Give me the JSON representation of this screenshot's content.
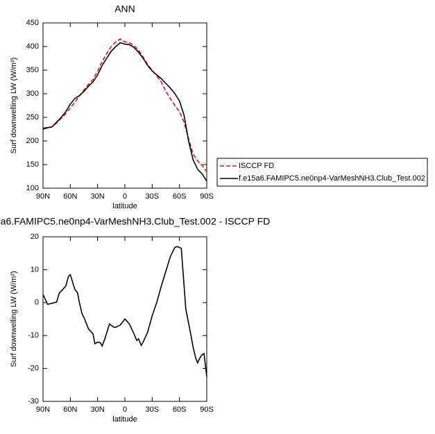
{
  "chart_data": [
    {
      "type": "line",
      "title": "ANN",
      "xlabel": "latitude",
      "ylabel": "Surf downwelling LW (W/m²)",
      "xlim": [
        90,
        -90
      ],
      "xticks": [
        {
          "value": 90,
          "label": "90N"
        },
        {
          "value": 60,
          "label": "60N"
        },
        {
          "value": 30,
          "label": "30N"
        },
        0,
        {
          "value": -30,
          "label": "30S"
        },
        {
          "value": -60,
          "label": "60S"
        },
        {
          "value": -90,
          "label": "90S"
        }
      ],
      "ylim": [
        100,
        450
      ],
      "yticks": [
        100,
        150,
        200,
        250,
        300,
        350,
        400,
        450
      ],
      "legend": "outside-right",
      "x": [
        90,
        85,
        80,
        75,
        70,
        65,
        60,
        55,
        50,
        45,
        40,
        35,
        30,
        25,
        20,
        15,
        10,
        5,
        0,
        -5,
        -10,
        -15,
        -20,
        -25,
        -30,
        -35,
        -40,
        -45,
        -50,
        -55,
        -60,
        -65,
        -70,
        -75,
        -80,
        -85,
        -90
      ],
      "series": [
        {
          "name": "ISCCP FD",
          "color": "#e01010",
          "dash": true,
          "values": [
            228,
            228,
            230,
            238,
            248,
            258,
            270,
            282,
            295,
            308,
            320,
            330,
            348,
            368,
            385,
            400,
            410,
            416,
            410,
            408,
            402,
            392,
            378,
            362,
            350,
            338,
            325,
            305,
            290,
            275,
            262,
            240,
            205,
            172,
            158,
            148,
            135
          ]
        },
        {
          "name": "f.e15a6.FAMIPC5.ne0np4-VarMeshNH3.Club_Test.002",
          "color": "#000000",
          "dash": false,
          "values": [
            225,
            228,
            230,
            240,
            250,
            262,
            278,
            290,
            296,
            305,
            316,
            325,
            340,
            360,
            375,
            390,
            400,
            408,
            405,
            404,
            398,
            388,
            375,
            360,
            348,
            340,
            332,
            322,
            312,
            300,
            285,
            255,
            200,
            160,
            140,
            130,
            115
          ]
        }
      ]
    },
    {
      "type": "line",
      "title": "a6.FAMIPC5.ne0np4-VarMeshNH3.Club_Test.002 - ISCCP FD",
      "xlabel": "latitude",
      "ylabel": "Surf downwelling LW (W/m²)",
      "xlim": [
        90,
        -90
      ],
      "xticks": [
        {
          "value": 90,
          "label": "90N"
        },
        {
          "value": 60,
          "label": "60N"
        },
        {
          "value": 30,
          "label": "30N"
        },
        0,
        {
          "value": -30,
          "label": "30S"
        },
        {
          "value": -60,
          "label": "60S"
        },
        {
          "value": -90,
          "label": "90S"
        }
      ],
      "ylim": [
        -30,
        20
      ],
      "yticks": [
        -30,
        -20,
        -10,
        0,
        10,
        20
      ],
      "x": [
        90,
        85,
        80,
        75,
        72,
        70,
        65,
        62,
        60,
        55,
        52,
        50,
        47,
        45,
        40,
        35,
        33,
        30,
        27,
        25,
        22,
        17,
        12,
        10,
        5,
        0,
        -5,
        -10,
        -13,
        -15,
        -18,
        -20,
        -25,
        -30,
        -35,
        -40,
        -45,
        -50,
        -55,
        -58,
        -62,
        -67,
        -72,
        -75,
        -78,
        -80,
        -82,
        -85,
        -87,
        -90
      ],
      "series": [
        {
          "color": "#000000",
          "values": [
            2.5,
            -0.5,
            -0.2,
            0.2,
            3,
            3.5,
            5,
            8,
            8.5,
            4,
            3,
            0,
            -3.5,
            -4.5,
            -8,
            -9.5,
            -12.5,
            -12,
            -12.2,
            -13.2,
            -11,
            -6.5,
            -7.5,
            -7.5,
            -6.8,
            -5,
            -6.5,
            -9.5,
            -11.5,
            -11,
            -13,
            -12,
            -9,
            -4,
            0,
            5,
            9.5,
            14,
            16.8,
            17,
            16.5,
            -2,
            -9,
            -13.5,
            -17,
            -18.3,
            -17,
            -15.8,
            -15.5,
            -22.5
          ]
        }
      ]
    }
  ]
}
